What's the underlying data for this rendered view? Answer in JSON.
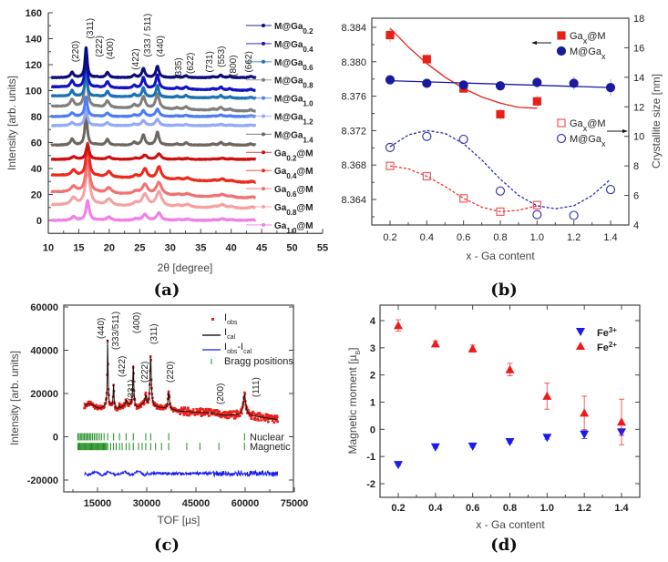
{
  "panel_labels": [
    "(a)",
    "(b)",
    "(c)",
    "(d)"
  ],
  "chart_data": [
    {
      "type": "line",
      "xlabel": "2θ [degree]",
      "ylabel": "Intensity [arb. units]",
      "xlim": [
        10,
        55
      ],
      "ylim": [
        -10,
        160
      ],
      "xticks": [
        "10",
        "15",
        "20",
        "25",
        "30",
        "35",
        "40",
        "45",
        "50",
        "55"
      ],
      "yticks": [
        "0",
        "20",
        "40",
        "60",
        "80",
        "100",
        "120",
        "140",
        "160"
      ],
      "peaks": [
        {
          "hkl": "(220)",
          "two_theta": 13.9,
          "rel": 0.18,
          "label_y": 122,
          "color": "#e8261a"
        },
        {
          "hkl": "(311)",
          "two_theta": 16.2,
          "rel": 1.0,
          "label_y": 140,
          "color": "#e8261a"
        },
        {
          "hkl": "(222)",
          "two_theta": 18.0,
          "rel": 0.02,
          "label_y": 126,
          "color": "#222222"
        },
        {
          "hkl": "(400)",
          "two_theta": 19.7,
          "rel": 0.17,
          "label_y": 124,
          "color": "#222222"
        },
        {
          "hkl": "(422)",
          "two_theta": 24.1,
          "rel": 0.08,
          "label_y": 116,
          "color": "#222222"
        },
        {
          "hkl": "(333 / 511)",
          "two_theta": 25.6,
          "rel": 0.3,
          "label_y": 126,
          "color": "#222222"
        },
        {
          "hkl": "(440)",
          "two_theta": 27.9,
          "rel": 0.38,
          "label_y": 126,
          "color": "#222222"
        },
        {
          "hkl": "(335)",
          "two_theta": 31.1,
          "rel": 0.04,
          "label_y": 109,
          "color": "#222222"
        },
        {
          "hkl": "(622)",
          "two_theta": 32.6,
          "rel": 0.07,
          "label_y": 113,
          "color": "#222222"
        },
        {
          "hkl": "(731)",
          "two_theta": 37.0,
          "rel": 0.03,
          "label_y": 114,
          "color": "#222222"
        },
        {
          "hkl": "(553)",
          "two_theta": 38.3,
          "rel": 0.08,
          "label_y": 118,
          "color": "#222222"
        },
        {
          "hkl": "(800)",
          "two_theta": 39.8,
          "rel": 0.04,
          "label_y": 111,
          "color": "#222222"
        },
        {
          "hkl": "(662)",
          "two_theta": 43.2,
          "rel": 0.04,
          "label_y": 114,
          "color": "#222222"
        }
      ],
      "series": [
        {
          "pre": "M@Ga",
          "sub": "0.2",
          "post": "",
          "color": "#0c0c7a",
          "start": 110,
          "end": 110,
          "peak_height": 23,
          "width": 0.25
        },
        {
          "pre": "M@Ga",
          "sub": "0.4",
          "post": "",
          "color": "#1212c4",
          "start": 103,
          "end": 100,
          "peak_height": 28,
          "width": 0.25
        },
        {
          "pre": "M@Ga",
          "sub": "0.6",
          "post": "",
          "color": "#1a72b2",
          "start": 96,
          "end": 94,
          "peak_height": 24,
          "width": 0.22
        },
        {
          "pre": "M@Ga",
          "sub": "0.8",
          "post": "",
          "color": "#7f7f7f",
          "start": 88,
          "end": 84,
          "peak_height": 30,
          "width": 0.3
        },
        {
          "pre": "M@Ga",
          "sub": "1.0",
          "post": "",
          "color": "#4c7ef2",
          "start": 80,
          "end": 80,
          "peak_height": 15,
          "width": 0.3
        },
        {
          "pre": "M@Ga",
          "sub": "1.2",
          "post": "",
          "color": "#93aaf5",
          "start": 73,
          "end": 73,
          "peak_height": 13,
          "width": 0.3
        },
        {
          "pre": "M@Ga",
          "sub": "1.4",
          "post": "",
          "color": "#6f6662",
          "start": 58,
          "end": 58,
          "peak_height": 26,
          "width": 0.25
        },
        {
          "pre": "Ga",
          "sub": "0.2",
          "post": "@M",
          "color": "#cc1010",
          "start": 47,
          "end": 47,
          "peak_height": 11,
          "width": 0.35
        },
        {
          "pre": "Ga",
          "sub": "0.4",
          "post": "@M",
          "color": "#ec2a1c",
          "start": 35,
          "end": 29,
          "peak_height": 25,
          "width": 0.35
        },
        {
          "pre": "Ga",
          "sub": "0.6",
          "post": "@M",
          "color": "#f07272",
          "start": 22,
          "end": 17,
          "peak_height": 25,
          "width": 0.45
        },
        {
          "pre": "Ga",
          "sub": "0.8",
          "post": "@M",
          "color": "#f5a2a2",
          "start": 12,
          "end": 9,
          "peak_height": 30,
          "width": 0.45
        },
        {
          "pre": "Ga",
          "sub": "1.0",
          "post": "@M",
          "color": "#f27ee6",
          "start": 0,
          "end": 0,
          "peak_height": 15,
          "width": 0.35
        }
      ]
    },
    {
      "type": "scatter",
      "xlabel": "x - Ga content",
      "ylabel_right": "Crystallite size [nm]",
      "xlim": [
        0.1,
        1.5
      ],
      "ylim_left": [
        8.361,
        8.3851
      ],
      "ylim_right": [
        4,
        18
      ],
      "xticks": [
        "0.2",
        "0.4",
        "0.6",
        "0.8",
        "1.0",
        "1.2",
        "1.4"
      ],
      "yticks_left": [
        "8.364",
        "8.368",
        "8.372",
        "8.376",
        "8.380",
        "8.384"
      ],
      "yticks_right": [
        "4",
        "6",
        "8",
        "10",
        "12",
        "14",
        "16",
        "18"
      ],
      "x": [
        0.2,
        0.4,
        0.6,
        0.8,
        1.0,
        1.2,
        1.4
      ],
      "series": [
        {
          "pre": "Ga",
          "sub": "x",
          "post": "@M",
          "axis": "left",
          "marker": "square-filled",
          "color": "#e8201a",
          "values": [
            8.3831,
            8.3803,
            8.3769,
            8.3739,
            8.3754
          ],
          "errors": [
            0.0008,
            0.0005,
            0.0003,
            0.0006,
            0.0007
          ]
        },
        {
          "pre": "M@Ga",
          "sub": "x",
          "post": "",
          "axis": "left",
          "marker": "circle-filled",
          "color": "#1a1aa0",
          "values": [
            8.3779,
            8.3775,
            8.3773,
            8.3772,
            8.3776,
            8.3775,
            8.377
          ],
          "errors": [
            0.0003,
            0.0004,
            0.0004,
            0.0004,
            0.0007,
            0.0008,
            0.001
          ]
        },
        {
          "pre": "Ga",
          "sub": "x",
          "post": "@M",
          "axis": "right",
          "marker": "square-open",
          "color": "#f05a5a",
          "values": [
            8.0,
            7.3,
            5.8,
            4.9,
            5.35
          ]
        },
        {
          "pre": "M@Ga",
          "sub": "x",
          "post": "",
          "axis": "right",
          "marker": "circle-open",
          "color": "#3a3ab0",
          "values": [
            9.25,
            10.0,
            9.8,
            6.3,
            4.7,
            4.65,
            6.4
          ]
        }
      ],
      "fits": [
        {
          "axis": "left",
          "style": "solid",
          "color": "#e8201a",
          "points": [
            [
              0.2,
              8.3839
            ],
            [
              0.3,
              8.3817
            ],
            [
              0.4,
              8.3798
            ],
            [
              0.5,
              8.3782
            ],
            [
              0.6,
              8.3769
            ],
            [
              0.7,
              8.3759
            ],
            [
              0.8,
              8.3752
            ],
            [
              0.9,
              8.3747
            ],
            [
              1.0,
              8.3746
            ]
          ]
        },
        {
          "axis": "left",
          "style": "solid",
          "color": "#1a1aa0",
          "points": [
            [
              0.2,
              8.3778
            ],
            [
              1.4,
              8.377
            ]
          ]
        },
        {
          "axis": "right",
          "style": "dashed",
          "color": "#f03030",
          "points": [
            [
              0.2,
              8.0
            ],
            [
              0.3,
              7.8
            ],
            [
              0.4,
              7.3
            ],
            [
              0.5,
              6.6
            ],
            [
              0.6,
              5.8
            ],
            [
              0.7,
              5.2
            ],
            [
              0.8,
              4.9
            ],
            [
              0.9,
              5.0
            ],
            [
              1.0,
              5.3
            ]
          ]
        },
        {
          "axis": "right",
          "style": "dashed",
          "color": "#2a2ab8",
          "points": [
            [
              0.2,
              9.3
            ],
            [
              0.3,
              10.1
            ],
            [
              0.4,
              10.4
            ],
            [
              0.5,
              10.2
            ],
            [
              0.6,
              9.5
            ],
            [
              0.7,
              8.4
            ],
            [
              0.8,
              7.1
            ],
            [
              0.9,
              6.0
            ],
            [
              1.0,
              5.3
            ],
            [
              1.1,
              5.1
            ],
            [
              1.2,
              5.3
            ],
            [
              1.3,
              6.0
            ],
            [
              1.4,
              7.1
            ]
          ]
        }
      ],
      "legend_position": "top-right"
    },
    {
      "type": "line",
      "xlabel": "TOF [µs]",
      "ylabel": "Intensity [arb. units]",
      "xlim": [
        4700,
        75000
      ],
      "ylim": [
        -25500,
        60800
      ],
      "xticks": [
        "15000",
        "30000",
        "45000",
        "60000",
        "75000"
      ],
      "yticks": [
        "-20000",
        "0",
        "20000",
        "40000",
        "60000"
      ],
      "background": [
        [
          11000,
          14500
        ],
        [
          20000,
          13500
        ],
        [
          30000,
          14500
        ],
        [
          40000,
          11800
        ],
        [
          50000,
          11000
        ],
        [
          53000,
          10000
        ],
        [
          60000,
          10000
        ],
        [
          70000,
          8000
        ]
      ],
      "peaks": [
        {
          "hkl": "(440)",
          "tof": 18100,
          "height": 31000,
          "label_y": 48000,
          "color": "#222222"
        },
        {
          "hkl": "(333/511)",
          "tof": 19900,
          "height": 11000,
          "label_y": 41000,
          "color": "#222222"
        },
        {
          "hkl": "(331)",
          "tof": 21700,
          "height": 1500,
          "label_y": 19000,
          "color": "#222222"
        },
        {
          "hkl": "(422)",
          "tof": 23700,
          "height": 2000,
          "label_y": 29000,
          "color": "#222222"
        },
        {
          "hkl": "(400)",
          "tof": 25900,
          "height": 19500,
          "label_y": 36000,
          "color": "#222222"
        },
        {
          "hkl": "(222)",
          "tof": 29700,
          "height": 3500,
          "label_y": 22000,
          "color": "#222222"
        },
        {
          "hkl": "(311)",
          "tof": 31200,
          "height": 23500,
          "label_y": 40000,
          "color": "#e8261a"
        },
        {
          "hkl": "(220)",
          "tof": 36700,
          "height": 8000,
          "label_y": 25000,
          "color": "#e8261a"
        },
        {
          "hkl": "(200)",
          "tof": 52000,
          "height": 0,
          "label_y": 12000,
          "color": "#222222"
        },
        {
          "hkl": "(111)",
          "tof": 59800,
          "height": 9500,
          "label_y": 18000,
          "color": "#222222"
        }
      ],
      "difference_offset": -17000,
      "bragg_nuclear": [
        9000,
        9400,
        9800,
        10200,
        10600,
        11000,
        11400,
        11800,
        12200,
        12600,
        13000,
        13500,
        14000,
        14500,
        15000,
        15600,
        16200,
        17000,
        18100,
        19900,
        21700,
        23700,
        25900,
        29700,
        31200,
        36700,
        59800
      ],
      "bragg_magnetic": [
        9000,
        9300,
        9600,
        9900,
        10200,
        10500,
        10800,
        11100,
        11400,
        11700,
        12000,
        12300,
        12600,
        12900,
        13200,
        13500,
        13800,
        14100,
        14400,
        14700,
        15000,
        15300,
        15600,
        15900,
        16200,
        16500,
        16800,
        17100,
        17400,
        17700,
        18100,
        19000,
        19900,
        20700,
        21700,
        22500,
        23700,
        24700,
        25900,
        27500,
        28600,
        29700,
        31200,
        32700,
        34500,
        36700,
        42200,
        46200,
        52000,
        59800
      ],
      "legend": [
        {
          "base": "I",
          "sub": "obs",
          "post": "",
          "sub2": "",
          "color": "#e8201a"
        },
        {
          "base": "I",
          "sub": "cal",
          "post": "",
          "sub2": "",
          "color": "#222222"
        },
        {
          "base": "I",
          "sub": "obs",
          "post": "-I",
          "sub2": "cal",
          "color": "#1a1af0"
        },
        {
          "base": "Bragg positions",
          "sub": "",
          "post": "",
          "sub2": "",
          "color": "#1e8c1e"
        }
      ],
      "phase_labels": [
        {
          "text": "Nuclear",
          "color": "#1e8c1e"
        },
        {
          "text": "Magnetic",
          "color": "#2a6aa0"
        }
      ]
    },
    {
      "type": "scatter",
      "xlabel": "x - Ga content",
      "ylabel": "Magnetic moment [µ",
      "ylabel_sub": "B",
      "ylabel_end": "]",
      "xlim": [
        0.1,
        1.5
      ],
      "ylim": [
        -2.5,
        4.57
      ],
      "xticks": [
        "0.2",
        "0.4",
        "0.6",
        "0.8",
        "1.0",
        "1.2",
        "1.4"
      ],
      "yticks": [
        "-2",
        "-1",
        "0",
        "1",
        "2",
        "3",
        "4"
      ],
      "x": [
        0.2,
        0.4,
        0.6,
        0.8,
        1.0,
        1.2,
        1.4
      ],
      "series": [
        {
          "base": "Fe",
          "sup": "3+",
          "marker": "triangle-down",
          "color": "#1a1af0",
          "values": [
            -1.3,
            -0.65,
            -0.62,
            -0.46,
            -0.3,
            -0.18,
            -0.1
          ],
          "errors": [
            0.03,
            0.04,
            0.04,
            0.04,
            0.06,
            0.16,
            0.12
          ]
        },
        {
          "base": "Fe",
          "sup": "2+",
          "marker": "triangle-up",
          "color": "#f01a1a",
          "values": [
            3.82,
            3.15,
            2.97,
            2.2,
            1.22,
            0.6,
            0.27
          ],
          "errors": [
            0.21,
            0.1,
            0.13,
            0.23,
            0.48,
            0.62,
            0.84
          ]
        }
      ],
      "legend_position": "top-right"
    }
  ]
}
